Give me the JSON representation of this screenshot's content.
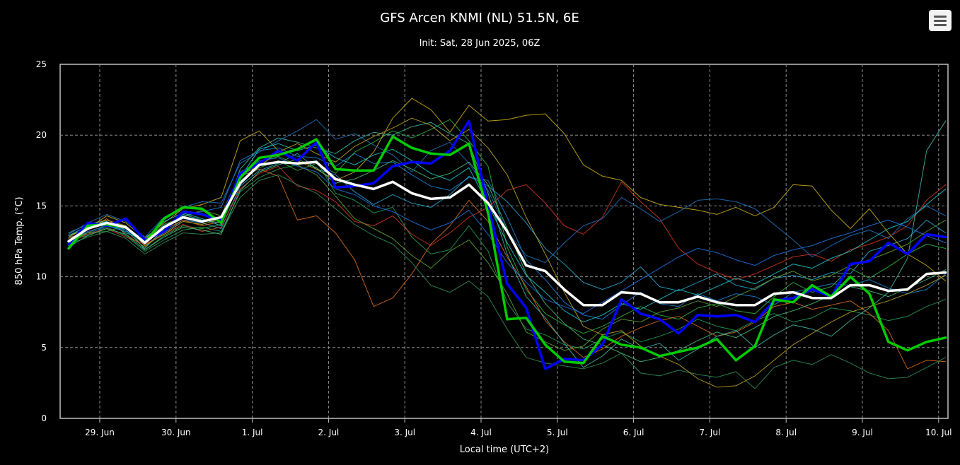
{
  "chart_data": {
    "type": "line",
    "title": "GFS Arcen KNMI (NL) 51.5N, 6E",
    "subtitle": "Init: Sat, 28 Jun 2025, 06Z",
    "xlabel": "Local time (UTC+2)",
    "ylabel": "850 hPa Temp. (°C)",
    "ylim": [
      0,
      25
    ],
    "yticks": [
      "0",
      "5",
      "10",
      "15",
      "20",
      "25"
    ],
    "xticks": [
      "29. Jun",
      "30. Jun",
      "1. Jul",
      "2. Jul",
      "3. Jul",
      "4. Jul",
      "5. Jul",
      "6. Jul",
      "7. Jul",
      "8. Jul",
      "9. Jul",
      "10. Jul"
    ],
    "grid": true,
    "legend": "none",
    "x_start": "2025-06-28 14:00",
    "x_step_hours": 6,
    "series": [
      {
        "role": "mean",
        "color": "#ffffff",
        "values": [
          12.5,
          13.4,
          13.8,
          13.5,
          12.4,
          13.5,
          14.2,
          13.9,
          14.2,
          16.6,
          17.9,
          18.1,
          18.0,
          18.1,
          16.9,
          16.5,
          16.2,
          16.7,
          15.9,
          15.5,
          15.6,
          16.5,
          15.2,
          13.2,
          10.8,
          10.4,
          9.1,
          8.0,
          8.0,
          8.9,
          8.8,
          8.2,
          8.2,
          8.6,
          8.2,
          8.0,
          8.0,
          8.8,
          8.9,
          8.5,
          8.5,
          9.4,
          9.4,
          9.0,
          9.1,
          10.2,
          10.3
        ]
      },
      {
        "role": "control",
        "color": "#00cc00",
        "values": [
          12.0,
          13.6,
          13.7,
          13.5,
          12.4,
          14.1,
          14.9,
          14.8,
          13.8,
          17.0,
          18.4,
          18.6,
          19.0,
          19.7,
          17.6,
          17.5,
          17.5,
          19.9,
          19.1,
          18.7,
          18.6,
          19.4,
          14.5,
          7.0,
          7.1,
          5.2,
          4.0,
          3.9,
          5.8,
          5.2,
          5.0,
          4.4,
          4.7,
          5.0,
          5.6,
          4.1,
          5.1,
          8.4,
          8.2,
          9.4,
          8.6,
          10.0,
          8.8,
          5.4,
          4.8,
          5.4,
          5.7
        ]
      },
      {
        "role": "operational",
        "color": "#0000ff",
        "values": [
          12.3,
          13.8,
          13.6,
          14.1,
          12.6,
          13.2,
          14.6,
          14.4,
          14.0,
          17.3,
          18.0,
          18.9,
          18.2,
          19.5,
          16.3,
          16.4,
          16.6,
          17.8,
          18.1,
          18.0,
          18.9,
          21.0,
          15.0,
          9.5,
          7.8,
          3.5,
          4.2,
          4.1,
          5.2,
          8.4,
          7.4,
          7.0,
          6.0,
          7.3,
          7.2,
          7.3,
          6.8,
          8.3,
          8.5,
          9.1,
          8.6,
          10.9,
          11.1,
          12.4,
          11.6,
          13.0,
          12.8
        ]
      },
      {
        "role": "member",
        "color": "#1a7fd0",
        "values": [
          12.8,
          13.0,
          13.6,
          13.2,
          12.8,
          13.6,
          14.3,
          14.6,
          14.9,
          18.2,
          18.9,
          19.1,
          18.5,
          18.4,
          17.8,
          18.7,
          18.0,
          18.1,
          17.2,
          16.4,
          16.1,
          17.0,
          16.8,
          14.2,
          11.2,
          9.8,
          8.2,
          7.3,
          7.0,
          8.0,
          8.9,
          8.1,
          7.9,
          8.8,
          8.3,
          8.8,
          8.6,
          8.0,
          8.9,
          9.2,
          9.5,
          9.4,
          9.8,
          9.2,
          8.8,
          9.1,
          10.2
        ]
      },
      {
        "role": "member",
        "color": "#2aa0c8",
        "values": [
          13.1,
          13.7,
          14.0,
          13.5,
          12.2,
          13.1,
          14.0,
          13.8,
          13.4,
          16.4,
          17.5,
          18.0,
          18.7,
          17.6,
          17.2,
          16.0,
          15.1,
          15.8,
          15.2,
          14.9,
          15.8,
          17.1,
          16.4,
          15.3,
          13.8,
          12.0,
          10.9,
          9.6,
          9.1,
          9.6,
          10.7,
          9.3,
          9.0,
          9.6,
          10.2,
          9.4,
          9.1,
          9.9,
          10.1,
          9.8,
          10.3,
          10.2,
          11.8,
          12.2,
          12.7,
          14.0,
          13.1
        ]
      },
      {
        "role": "member",
        "color": "#1f9a5a",
        "values": [
          12.6,
          12.9,
          13.5,
          12.9,
          11.8,
          12.6,
          13.3,
          13.5,
          13.2,
          16.0,
          17.0,
          17.6,
          17.9,
          18.2,
          15.9,
          15.4,
          14.5,
          14.9,
          12.8,
          11.6,
          11.9,
          13.6,
          11.8,
          8.2,
          6.3,
          5.9,
          5.2,
          4.9,
          5.6,
          6.1,
          5.4,
          5.8,
          6.3,
          7.0,
          6.5,
          6.2,
          6.9,
          7.4,
          6.8,
          7.1,
          7.8,
          7.6,
          7.3,
          6.9,
          7.2,
          7.9,
          8.4
        ]
      },
      {
        "role": "member",
        "color": "#2bb040",
        "values": [
          12.4,
          13.1,
          13.2,
          13.6,
          11.9,
          12.9,
          13.6,
          13.4,
          13.7,
          16.8,
          17.7,
          18.2,
          17.5,
          18.0,
          17.3,
          18.8,
          19.5,
          20.3,
          19.8,
          20.4,
          21.1,
          19.6,
          17.8,
          12.1,
          9.1,
          7.4,
          6.6,
          6.0,
          6.5,
          7.2,
          7.9,
          7.3,
          7.0,
          7.8,
          8.1,
          7.6,
          7.4,
          8.6,
          9.6,
          8.9,
          9.3,
          10.6,
          9.9,
          10.7,
          11.6,
          12.3,
          12.0
        ]
      },
      {
        "role": "member",
        "color": "#c7a81a",
        "values": [
          12.9,
          13.4,
          14.3,
          13.8,
          12.7,
          13.8,
          14.8,
          15.1,
          15.6,
          19.6,
          20.3,
          18.9,
          18.2,
          17.6,
          16.8,
          17.4,
          18.8,
          21.2,
          22.6,
          21.8,
          20.2,
          22.1,
          21.0,
          21.1,
          21.4,
          21.5,
          20.1,
          17.9,
          17.1,
          16.8,
          15.6,
          15.1,
          14.9,
          14.7,
          14.4,
          14.9,
          14.3,
          14.9,
          16.5,
          16.4,
          14.7,
          13.4,
          14.8,
          13.1,
          11.6,
          10.8,
          9.7
        ]
      },
      {
        "role": "member",
        "color": "#d2691e",
        "values": [
          12.7,
          13.3,
          14.1,
          13.0,
          12.1,
          13.3,
          14.0,
          13.6,
          13.9,
          17.1,
          17.6,
          17.1,
          14.0,
          14.3,
          13.1,
          11.2,
          7.9,
          8.5,
          10.2,
          12.3,
          13.6,
          15.4,
          13.9,
          11.4,
          9.3,
          6.9,
          5.4,
          4.3,
          4.9,
          5.8,
          6.4,
          6.9,
          7.2,
          6.5,
          5.8,
          6.1,
          6.8,
          7.9,
          8.2,
          7.7,
          8.0,
          8.3,
          7.4,
          6.2,
          3.5,
          4.1,
          4.0
        ]
      },
      {
        "role": "member",
        "color": "#cc3322",
        "values": [
          12.5,
          13.0,
          13.4,
          12.8,
          12.3,
          13.0,
          13.7,
          13.2,
          13.5,
          16.2,
          17.3,
          17.8,
          16.4,
          16.1,
          15.3,
          13.9,
          13.6,
          14.3,
          13.0,
          12.2,
          13.1,
          14.2,
          14.9,
          16.1,
          16.5,
          15.2,
          13.6,
          13.0,
          14.2,
          16.7,
          15.3,
          14.1,
          12.0,
          10.9,
          10.3,
          9.8,
          10.2,
          10.8,
          11.4,
          11.6,
          11.1,
          11.9,
          12.3,
          12.8,
          13.6,
          15.4,
          16.5
        ]
      },
      {
        "role": "member",
        "color": "#3fb0a0",
        "values": [
          12.2,
          13.5,
          13.9,
          13.3,
          12.0,
          13.4,
          14.4,
          14.0,
          13.8,
          17.6,
          19.1,
          19.8,
          19.5,
          19.1,
          18.7,
          19.6,
          20.2,
          20.0,
          20.6,
          20.9,
          20.1,
          19.4,
          15.9,
          11.6,
          8.6,
          7.1,
          5.3,
          3.6,
          4.4,
          5.6,
          4.9,
          5.3,
          4.1,
          4.9,
          5.8,
          6.2,
          5.0,
          5.9,
          6.6,
          6.3,
          5.8,
          6.9,
          7.8,
          8.9,
          11.3,
          18.9,
          21.0
        ]
      },
      {
        "role": "member",
        "color": "#1d6fb8",
        "values": [
          13.0,
          13.8,
          14.4,
          13.9,
          12.8,
          14.2,
          14.9,
          15.3,
          15.2,
          18.0,
          18.8,
          19.6,
          20.3,
          21.1,
          19.7,
          20.1,
          19.3,
          18.6,
          17.4,
          18.9,
          19.5,
          18.0,
          16.1,
          13.2,
          11.5,
          11.0,
          12.4,
          13.6,
          14.1,
          15.6,
          14.8,
          13.9,
          14.6,
          15.4,
          15.5,
          15.3,
          14.8,
          13.7,
          12.6,
          11.4,
          12.2,
          12.9,
          13.3,
          12.7,
          14.1,
          15.0,
          14.3
        ]
      },
      {
        "role": "member",
        "color": "#5a9e2d",
        "values": [
          12.6,
          13.1,
          13.7,
          13.4,
          12.5,
          13.7,
          14.2,
          14.7,
          14.3,
          17.4,
          18.1,
          18.5,
          17.9,
          17.2,
          15.7,
          14.1,
          13.4,
          12.7,
          11.5,
          10.6,
          11.8,
          12.6,
          11.0,
          8.8,
          6.1,
          5.4,
          4.8,
          5.1,
          6.3,
          7.0,
          6.8,
          7.5,
          7.8,
          8.3,
          7.9,
          8.6,
          9.2,
          9.9,
          10.4,
          9.7,
          10.1,
          10.8,
          11.2,
          11.7,
          12.3,
          13.2,
          14.0
        ]
      },
      {
        "role": "member",
        "color": "#18c0c8",
        "values": [
          12.9,
          13.6,
          13.9,
          13.1,
          12.6,
          13.9,
          14.5,
          14.1,
          13.6,
          17.0,
          19.0,
          19.4,
          18.9,
          19.3,
          18.4,
          17.9,
          18.6,
          19.0,
          18.2,
          17.3,
          16.8,
          17.7,
          15.1,
          12.4,
          10.1,
          8.9,
          7.6,
          6.8,
          7.3,
          8.1,
          7.7,
          8.4,
          9.1,
          8.7,
          9.3,
          9.9,
          9.5,
          10.2,
          10.9,
          10.6,
          11.3,
          11.8,
          12.6,
          13.4,
          13.9,
          15.1,
          16.2
        ]
      },
      {
        "role": "member",
        "color": "#2e8b57",
        "values": [
          12.3,
          12.8,
          13.2,
          12.7,
          11.6,
          12.4,
          13.1,
          13.0,
          13.1,
          15.6,
          16.8,
          17.2,
          16.5,
          15.9,
          14.8,
          13.7,
          12.9,
          12.3,
          11.0,
          9.4,
          8.9,
          9.7,
          8.6,
          6.3,
          4.3,
          3.9,
          3.7,
          3.5,
          3.9,
          4.6,
          3.2,
          3.0,
          3.4,
          3.1,
          2.9,
          3.3,
          2.1,
          3.6,
          4.1,
          3.8,
          4.5,
          3.9,
          3.2,
          2.8,
          2.9,
          3.6,
          4.3
        ]
      },
      {
        "role": "member",
        "color": "#b8a020",
        "values": [
          12.8,
          13.5,
          14.0,
          13.6,
          12.2,
          13.0,
          13.9,
          13.7,
          14.1,
          17.2,
          17.8,
          18.8,
          19.4,
          18.7,
          18.1,
          19.2,
          19.9,
          20.5,
          21.2,
          20.7,
          19.6,
          20.4,
          19.1,
          17.2,
          14.2,
          11.6,
          8.9,
          6.5,
          5.9,
          6.2,
          5.1,
          4.4,
          3.8,
          2.8,
          2.2,
          2.3,
          3.0,
          4.1,
          5.2,
          6.0,
          6.8,
          7.5,
          7.9,
          8.3,
          8.8,
          9.4,
          10.1
        ]
      },
      {
        "role": "member",
        "color": "#2070e0",
        "values": [
          12.5,
          13.2,
          13.6,
          13.3,
          12.4,
          13.5,
          14.1,
          13.9,
          14.2,
          16.9,
          18.2,
          18.4,
          17.8,
          17.4,
          16.2,
          15.8,
          15.0,
          14.6,
          13.9,
          13.3,
          13.8,
          14.7,
          13.0,
          11.0,
          9.6,
          8.4,
          7.9,
          7.4,
          8.2,
          9.0,
          9.8,
          10.6,
          11.4,
          12.0,
          11.7,
          11.2,
          10.8,
          11.5,
          11.9,
          12.2,
          12.7,
          13.1,
          13.6,
          14.0,
          13.5,
          12.9,
          12.4
        ]
      },
      {
        "role": "member",
        "color": "#45b87a",
        "values": [
          12.1,
          12.9,
          13.4,
          13.0,
          11.9,
          12.8,
          13.5,
          13.3,
          13.0,
          16.1,
          17.4,
          17.9,
          18.3,
          17.7,
          16.6,
          16.9,
          17.5,
          18.2,
          17.6,
          16.9,
          17.3,
          18.1,
          16.5,
          13.4,
          10.2,
          8.1,
          6.7,
          5.6,
          5.2,
          4.6,
          4.0,
          4.3,
          4.8,
          5.5,
          6.1,
          5.7,
          6.4,
          7.2,
          7.6,
          8.1,
          8.7,
          9.3,
          9.0,
          8.6,
          9.2,
          9.8,
          10.5
        ]
      }
    ]
  }
}
